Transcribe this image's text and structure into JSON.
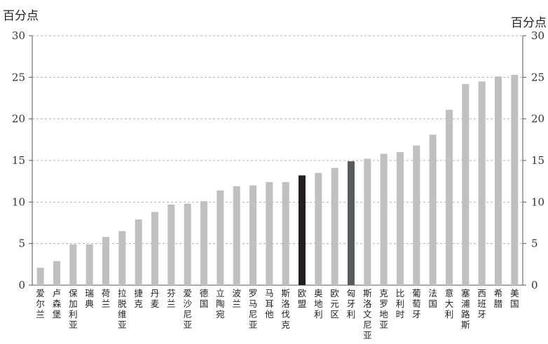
{
  "chart_data": {
    "type": "bar",
    "unit_left": "百分点",
    "unit_right": "百分点",
    "ylim": [
      0,
      30
    ],
    "yticks": [
      0,
      5,
      10,
      15,
      20,
      25,
      30
    ],
    "grid": true,
    "categories": [
      "爱尔兰",
      "卢森堡",
      "保加利亚",
      "瑞典",
      "荷兰",
      "拉脱维亚",
      "捷克",
      "丹麦",
      "芬兰",
      "爱沙尼亚",
      "德国",
      "立陶宛",
      "波兰",
      "罗马尼亚",
      "马耳他",
      "斯洛伐克",
      "欧盟",
      "奥地利",
      "欧元区",
      "匈牙利",
      "斯洛文尼亚",
      "克罗地亚",
      "比利时",
      "葡萄牙",
      "法国",
      "意大利",
      "塞浦路斯",
      "西班牙",
      "希腊",
      "美国"
    ],
    "values": [
      2.1,
      2.9,
      4.9,
      4.9,
      5.8,
      6.5,
      7.9,
      8.8,
      9.7,
      9.8,
      10.1,
      11.4,
      11.9,
      12.0,
      12.4,
      12.4,
      13.2,
      13.5,
      14.1,
      14.9,
      15.2,
      15.8,
      16.0,
      16.8,
      18.1,
      21.1,
      24.2,
      24.5,
      25.1,
      25.3
    ],
    "colors": {
      "default": "#c0c0c0",
      "欧盟": "#231f20",
      "匈牙利": "#58595b"
    }
  }
}
